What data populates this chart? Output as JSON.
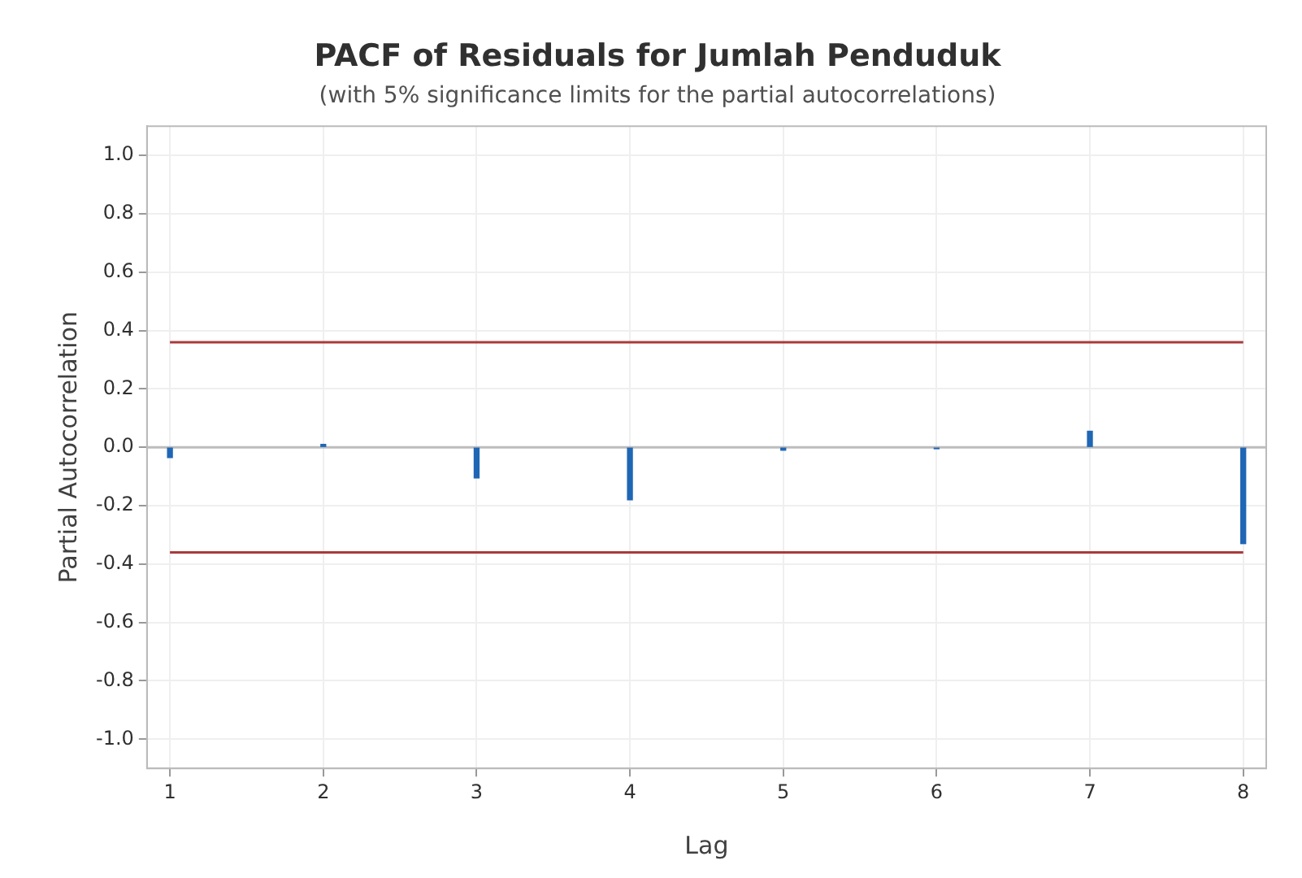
{
  "chart_data": {
    "type": "bar",
    "title": "PACF of Residuals for Jumlah Penduduk",
    "subtitle": "(with 5% significance limits for the partial autocorrelations)",
    "xlabel": "Lag",
    "ylabel": "Partial Autocorrelation",
    "x": [
      1,
      2,
      3,
      4,
      5,
      6,
      7,
      8
    ],
    "values": [
      -0.035,
      0.01,
      -0.105,
      -0.18,
      -0.01,
      -0.005,
      0.055,
      -0.33
    ],
    "color": "#1f66b5",
    "xlim": [
      0.85,
      8.15
    ],
    "xticks": [
      1,
      2,
      3,
      4,
      5,
      6,
      7,
      8
    ],
    "ylim": [
      -1.1,
      1.1
    ],
    "yticks": [
      {
        "value": -1,
        "label": "-1.0"
      },
      {
        "value": -0.8,
        "label": "-0.8"
      },
      {
        "value": -0.6,
        "label": "-0.6"
      },
      {
        "value": -0.4,
        "label": "-0.4"
      },
      {
        "value": -0.2,
        "label": "-0.2"
      },
      {
        "value": 0,
        "label": "0.0"
      },
      {
        "value": 0.2,
        "label": "0.2"
      },
      {
        "value": 0.4,
        "label": "0.4"
      },
      {
        "value": 0.6,
        "label": "0.6"
      },
      {
        "value": 0.8,
        "label": "0.8"
      },
      {
        "value": 1,
        "label": "1.0"
      }
    ],
    "ref_lines": [
      {
        "axis": "y",
        "value": 0.36,
        "color": "#a93b3b"
      },
      {
        "axis": "y",
        "value": -0.36,
        "color": "#a93b3b"
      },
      {
        "axis": "y",
        "value": 0,
        "color": "#bdbdbd"
      }
    ],
    "grid": true,
    "legend": false
  }
}
